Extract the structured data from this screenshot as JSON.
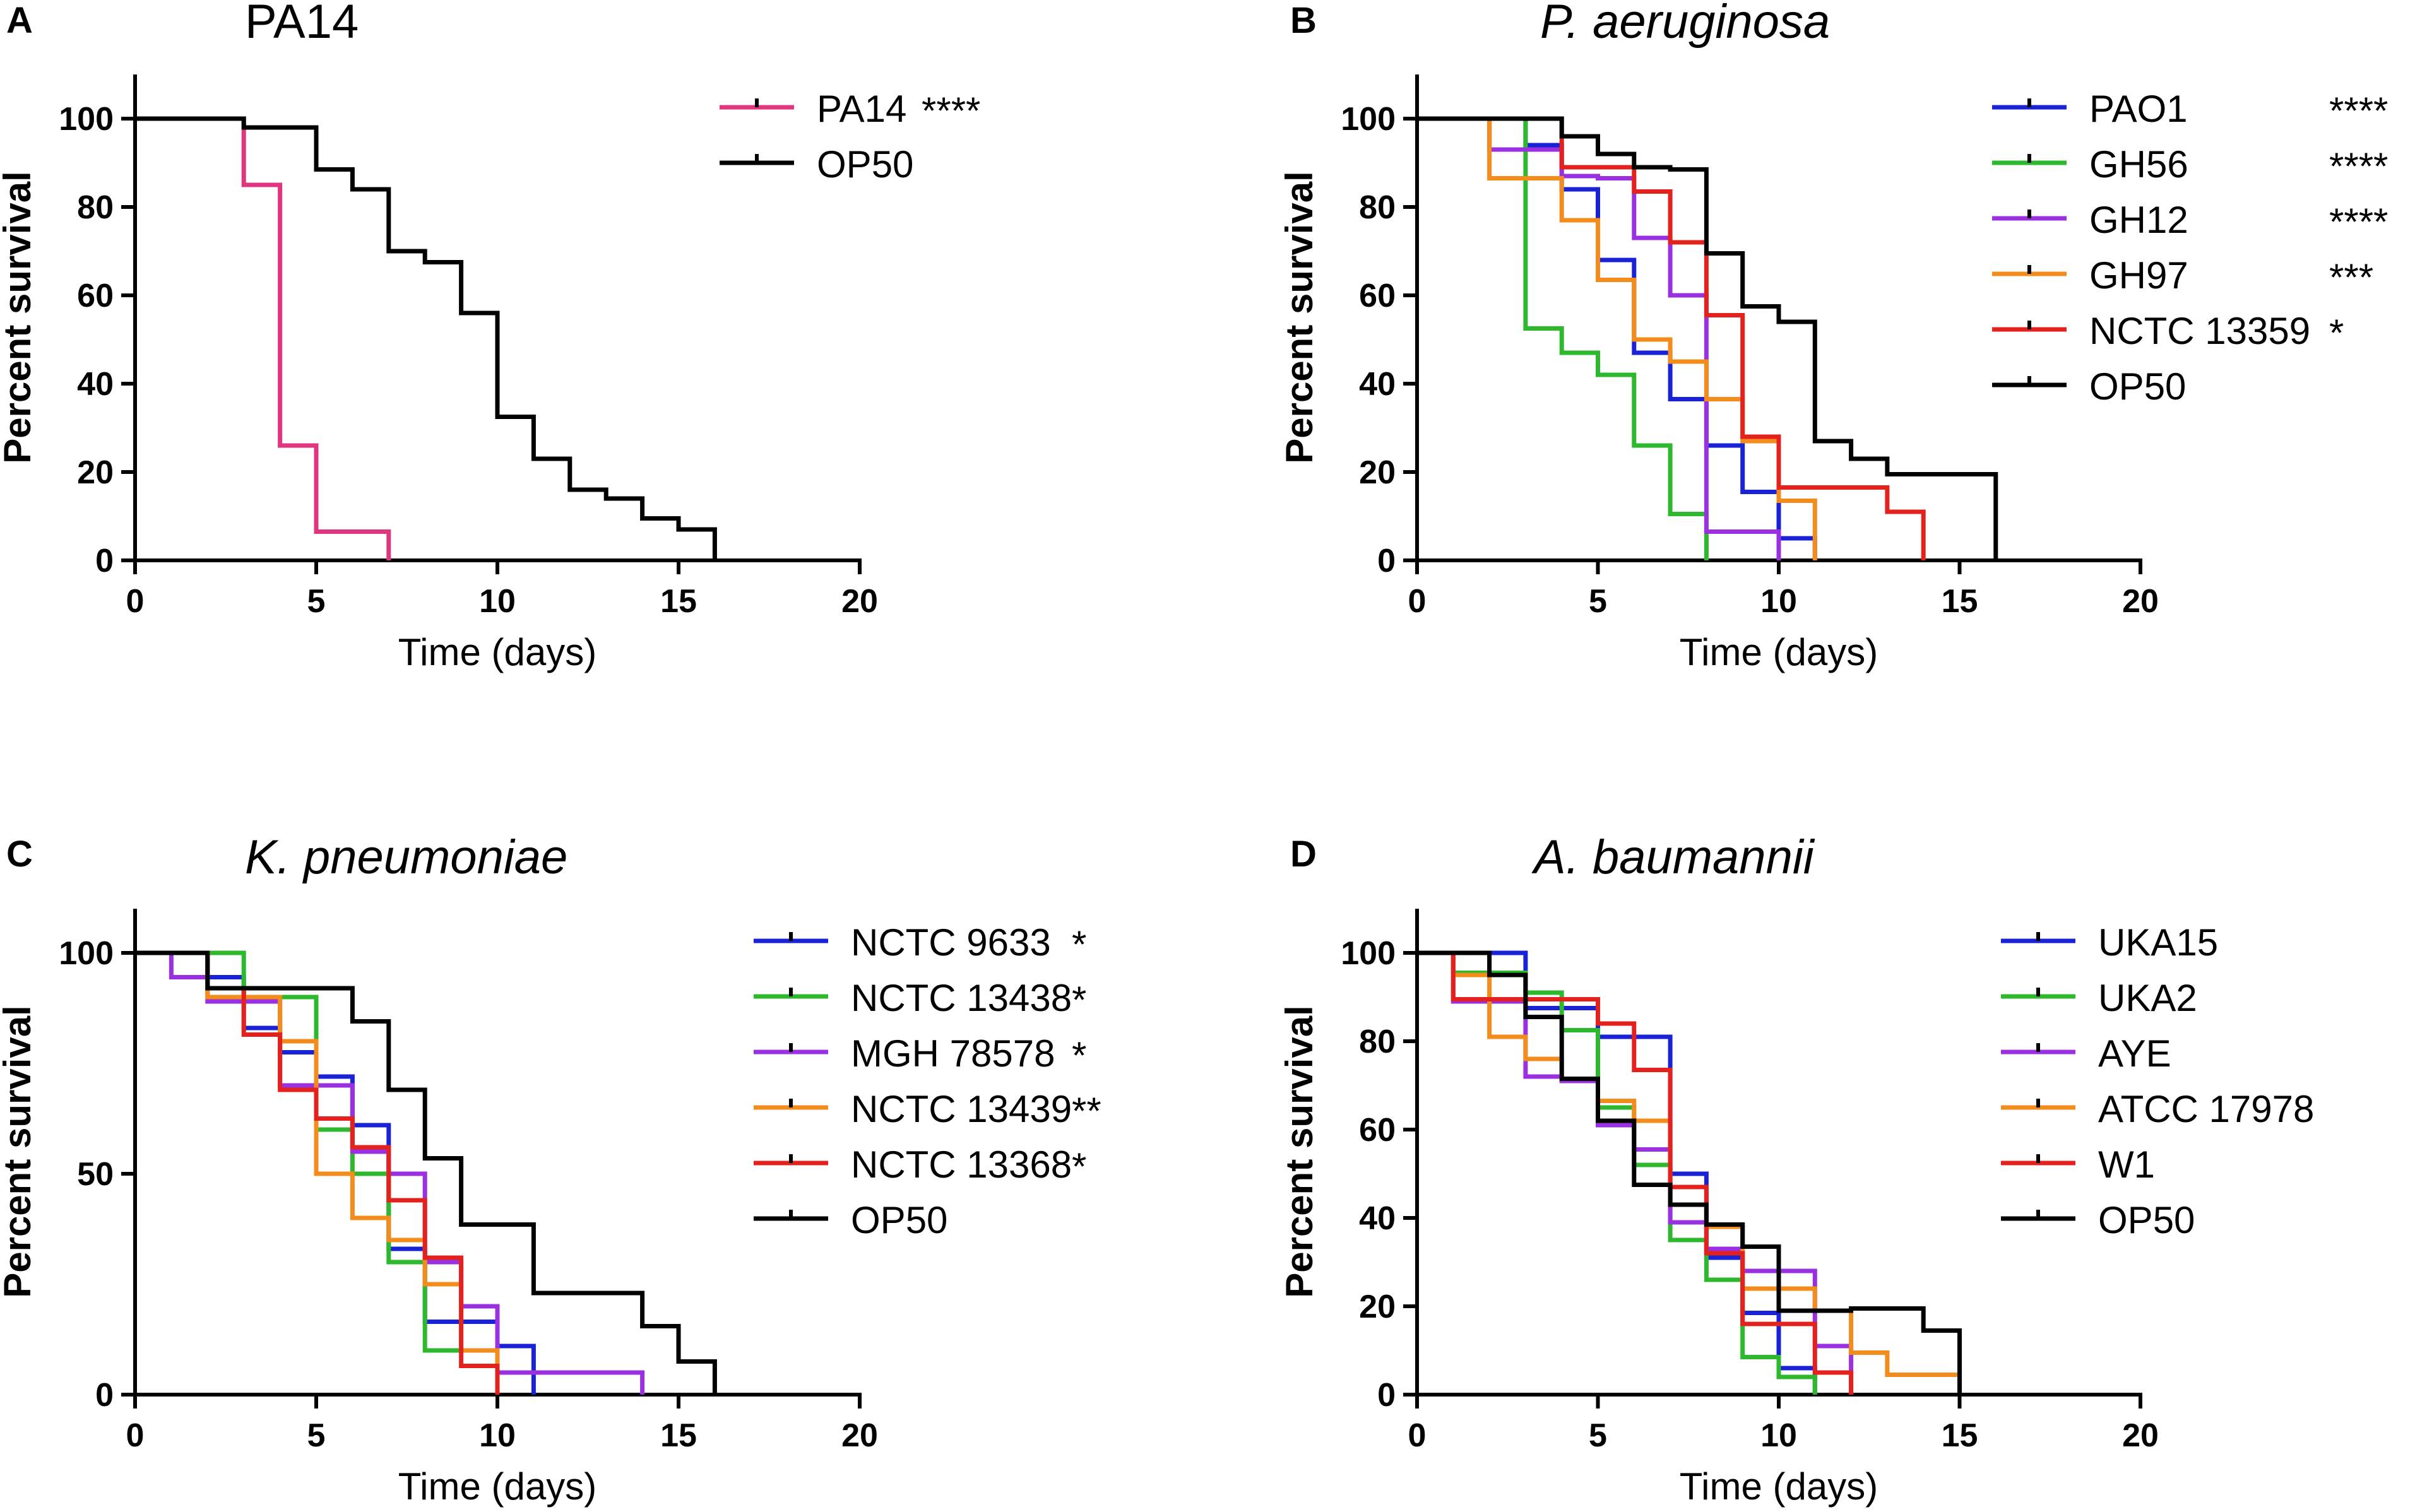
{
  "chart_data": [
    {
      "type": "line",
      "panel": "A",
      "title": "PA14",
      "title_italic": false,
      "xlabel": "Time (days)",
      "ylabel": "Percent survival",
      "xlim": [
        0,
        20
      ],
      "ylim": [
        0,
        110
      ],
      "xticks": [
        0,
        5,
        10,
        15,
        20
      ],
      "yticks": [
        0,
        20,
        40,
        60,
        80,
        100
      ],
      "series": [
        {
          "name": "PA14",
          "sig": "****",
          "color": "#e0357f",
          "steps": [
            [
              0,
              100
            ],
            [
              3,
              85
            ],
            [
              4,
              26
            ],
            [
              5,
              6.5
            ],
            [
              7,
              0
            ]
          ]
        },
        {
          "name": "OP50",
          "sig": "",
          "color": "#000000",
          "steps": [
            [
              0,
              100
            ],
            [
              3,
              98
            ],
            [
              5,
              88.5
            ],
            [
              6,
              84
            ],
            [
              7,
              70
            ],
            [
              8,
              67.5
            ],
            [
              9,
              56
            ],
            [
              10,
              32.5
            ],
            [
              11,
              23
            ],
            [
              12,
              16
            ],
            [
              13,
              14
            ],
            [
              14,
              9.5
            ],
            [
              15,
              7
            ],
            [
              16,
              0
            ]
          ]
        }
      ]
    },
    {
      "type": "line",
      "panel": "B",
      "title": "P. aeruginosa",
      "title_italic": true,
      "xlabel": "Time (days)",
      "ylabel": "Percent survival",
      "xlim": [
        0,
        20
      ],
      "ylim": [
        0,
        110
      ],
      "xticks": [
        0,
        5,
        10,
        15,
        20
      ],
      "yticks": [
        0,
        20,
        40,
        60,
        80,
        100
      ],
      "series": [
        {
          "name": "PAO1",
          "sig": "****",
          "color": "#1a22d6",
          "steps": [
            [
              0,
              100
            ],
            [
              3,
              94
            ],
            [
              4,
              84
            ],
            [
              5,
              68
            ],
            [
              6,
              47
            ],
            [
              7,
              36.5
            ],
            [
              8,
              26
            ],
            [
              9,
              15.5
            ],
            [
              10,
              5
            ],
            [
              11,
              0
            ]
          ]
        },
        {
          "name": "GH56",
          "sig": "****",
          "color": "#2db82d",
          "steps": [
            [
              0,
              100
            ],
            [
              3,
              52.5
            ],
            [
              4,
              47
            ],
            [
              5,
              42
            ],
            [
              6,
              26
            ],
            [
              7,
              10.5
            ],
            [
              8,
              0
            ]
          ]
        },
        {
          "name": "GH12",
          "sig": "****",
          "color": "#9b30e0",
          "steps": [
            [
              0,
              100
            ],
            [
              2,
              93
            ],
            [
              4,
              87
            ],
            [
              5,
              86.5
            ],
            [
              6,
              73
            ],
            [
              7,
              60
            ],
            [
              8,
              6.5
            ],
            [
              10,
              0
            ]
          ]
        },
        {
          "name": "GH97",
          "sig": "***",
          "color": "#f28c1c",
          "steps": [
            [
              0,
              100
            ],
            [
              2,
              86.5
            ],
            [
              4,
              77
            ],
            [
              5,
              63.5
            ],
            [
              6,
              50
            ],
            [
              7,
              45
            ],
            [
              8,
              36.5
            ],
            [
              9,
              27
            ],
            [
              10,
              13.5
            ],
            [
              11,
              0
            ]
          ]
        },
        {
          "name": "NCTC 13359",
          "sig": "*",
          "color": "#e3221e",
          "steps": [
            [
              0,
              100
            ],
            [
              3,
              100
            ],
            [
              4,
              89
            ],
            [
              6,
              83.5
            ],
            [
              7,
              72
            ],
            [
              8,
              55.5
            ],
            [
              9,
              28
            ],
            [
              10,
              16.5
            ],
            [
              13,
              11
            ],
            [
              14,
              0
            ]
          ]
        },
        {
          "name": "OP50",
          "sig": "",
          "color": "#000000",
          "steps": [
            [
              0,
              100
            ],
            [
              4,
              96
            ],
            [
              5,
              92
            ],
            [
              6,
              89
            ],
            [
              7,
              88.5
            ],
            [
              8,
              69.5
            ],
            [
              9,
              57.5
            ],
            [
              10,
              54
            ],
            [
              11,
              27
            ],
            [
              12,
              23
            ],
            [
              13,
              19.5
            ],
            [
              16,
              0
            ]
          ]
        }
      ]
    },
    {
      "type": "line",
      "panel": "C",
      "title": "K. pneumoniae",
      "title_italic": true,
      "xlabel": "Time (days)",
      "ylabel": "Percent survival",
      "xlim": [
        0,
        20
      ],
      "ylim": [
        0,
        110
      ],
      "xticks": [
        0,
        5,
        10,
        15,
        20
      ],
      "yticks": [
        0,
        50,
        100
      ],
      "series": [
        {
          "name": "NCTC 9633",
          "sig": "*",
          "color": "#1a22d6",
          "steps": [
            [
              0,
              100
            ],
            [
              2,
              94.5
            ],
            [
              3,
              83
            ],
            [
              4,
              77.5
            ],
            [
              5,
              72
            ],
            [
              6,
              61
            ],
            [
              7,
              33
            ],
            [
              8,
              16.5
            ],
            [
              10,
              11
            ],
            [
              11,
              0
            ]
          ]
        },
        {
          "name": "NCTC 13438",
          "sig": "*",
          "color": "#2db82d",
          "steps": [
            [
              0,
              100
            ],
            [
              3,
              90
            ],
            [
              5,
              60
            ],
            [
              6,
              50
            ],
            [
              7,
              30
            ],
            [
              8,
              10
            ],
            [
              10,
              0
            ]
          ]
        },
        {
          "name": "MGH 78578",
          "sig": "*",
          "color": "#9b30e0",
          "steps": [
            [
              0,
              100
            ],
            [
              1,
              94.5
            ],
            [
              2,
              89
            ],
            [
              4,
              70
            ],
            [
              6,
              55
            ],
            [
              7,
              50
            ],
            [
              8,
              30
            ],
            [
              9,
              20
            ],
            [
              10,
              5
            ],
            [
              14,
              0
            ]
          ]
        },
        {
          "name": "NCTC 13439",
          "sig": "**",
          "color": "#f28c1c",
          "steps": [
            [
              0,
              100
            ],
            [
              2,
              90
            ],
            [
              4,
              80
            ],
            [
              5,
              50
            ],
            [
              6,
              40
            ],
            [
              7,
              35
            ],
            [
              8,
              25
            ],
            [
              9,
              10
            ],
            [
              10,
              0
            ]
          ]
        },
        {
          "name": "NCTC 13368",
          "sig": "*",
          "color": "#e3221e",
          "steps": [
            [
              0,
              100
            ],
            [
              2,
              92
            ],
            [
              3,
              81.5
            ],
            [
              4,
              69
            ],
            [
              5,
              62.5
            ],
            [
              6,
              56
            ],
            [
              7,
              44
            ],
            [
              8,
              31
            ],
            [
              9,
              6.5
            ],
            [
              10,
              0
            ]
          ]
        },
        {
          "name": "OP50",
          "sig": "",
          "color": "#000000",
          "steps": [
            [
              0,
              100
            ],
            [
              2,
              92
            ],
            [
              6,
              84.5
            ],
            [
              7,
              69
            ],
            [
              8,
              53.5
            ],
            [
              9,
              38.5
            ],
            [
              11,
              23
            ],
            [
              14,
              15.5
            ],
            [
              15,
              7.5
            ],
            [
              16,
              0
            ]
          ]
        }
      ]
    },
    {
      "type": "line",
      "panel": "D",
      "title": "A. baumannii",
      "title_italic": true,
      "xlabel": "Time (days)",
      "ylabel": "Percent survival",
      "xlim": [
        0,
        20
      ],
      "ylim": [
        0,
        110
      ],
      "xticks": [
        0,
        5,
        10,
        15,
        20
      ],
      "yticks": [
        0,
        20,
        40,
        60,
        80,
        100
      ],
      "series": [
        {
          "name": "UKA15",
          "sig": "",
          "color": "#1a22d6",
          "steps": [
            [
              0,
              100
            ],
            [
              3,
              87.5
            ],
            [
              5,
              81
            ],
            [
              7,
              50
            ],
            [
              8,
              31
            ],
            [
              9,
              18.5
            ],
            [
              10,
              6
            ],
            [
              11,
              0
            ]
          ]
        },
        {
          "name": "UKA2",
          "sig": "",
          "color": "#2db82d",
          "steps": [
            [
              0,
              100
            ],
            [
              1,
              95.5
            ],
            [
              3,
              91
            ],
            [
              4,
              82.5
            ],
            [
              5,
              65
            ],
            [
              6,
              52
            ],
            [
              7,
              35
            ],
            [
              8,
              26
            ],
            [
              9,
              8.5
            ],
            [
              10,
              4
            ],
            [
              11,
              0
            ]
          ]
        },
        {
          "name": "AYE",
          "sig": "",
          "color": "#9b30e0",
          "steps": [
            [
              0,
              100
            ],
            [
              1,
              89
            ],
            [
              3,
              72
            ],
            [
              4,
              71
            ],
            [
              5,
              61
            ],
            [
              6,
              55.5
            ],
            [
              7,
              39
            ],
            [
              8,
              33
            ],
            [
              9,
              28
            ],
            [
              11,
              11
            ],
            [
              12,
              0
            ]
          ]
        },
        {
          "name": "ATCC 17978",
          "sig": "",
          "color": "#f28c1c",
          "steps": [
            [
              0,
              100
            ],
            [
              1,
              95
            ],
            [
              2,
              81
            ],
            [
              3,
              76
            ],
            [
              4,
              71.5
            ],
            [
              5,
              66.5
            ],
            [
              6,
              62
            ],
            [
              7,
              43
            ],
            [
              8,
              38
            ],
            [
              9,
              24
            ],
            [
              11,
              19
            ],
            [
              12,
              9.5
            ],
            [
              13,
              4.5
            ],
            [
              15,
              0
            ]
          ]
        },
        {
          "name": "W1",
          "sig": "",
          "color": "#e3221e",
          "steps": [
            [
              0,
              100
            ],
            [
              1,
              89.5
            ],
            [
              5,
              84
            ],
            [
              6,
              73.5
            ],
            [
              7,
              47
            ],
            [
              8,
              32
            ],
            [
              9,
              16
            ],
            [
              11,
              5
            ],
            [
              12,
              0
            ]
          ]
        },
        {
          "name": "OP50",
          "sig": "",
          "color": "#000000",
          "steps": [
            [
              0,
              100
            ],
            [
              2,
              95
            ],
            [
              3,
              85.5
            ],
            [
              4,
              71.5
            ],
            [
              5,
              62
            ],
            [
              6,
              47.5
            ],
            [
              7,
              43
            ],
            [
              8,
              38.5
            ],
            [
              9,
              33.5
            ],
            [
              10,
              19
            ],
            [
              12,
              19.5
            ],
            [
              14,
              14.5
            ],
            [
              15,
              0
            ]
          ]
        }
      ]
    }
  ]
}
